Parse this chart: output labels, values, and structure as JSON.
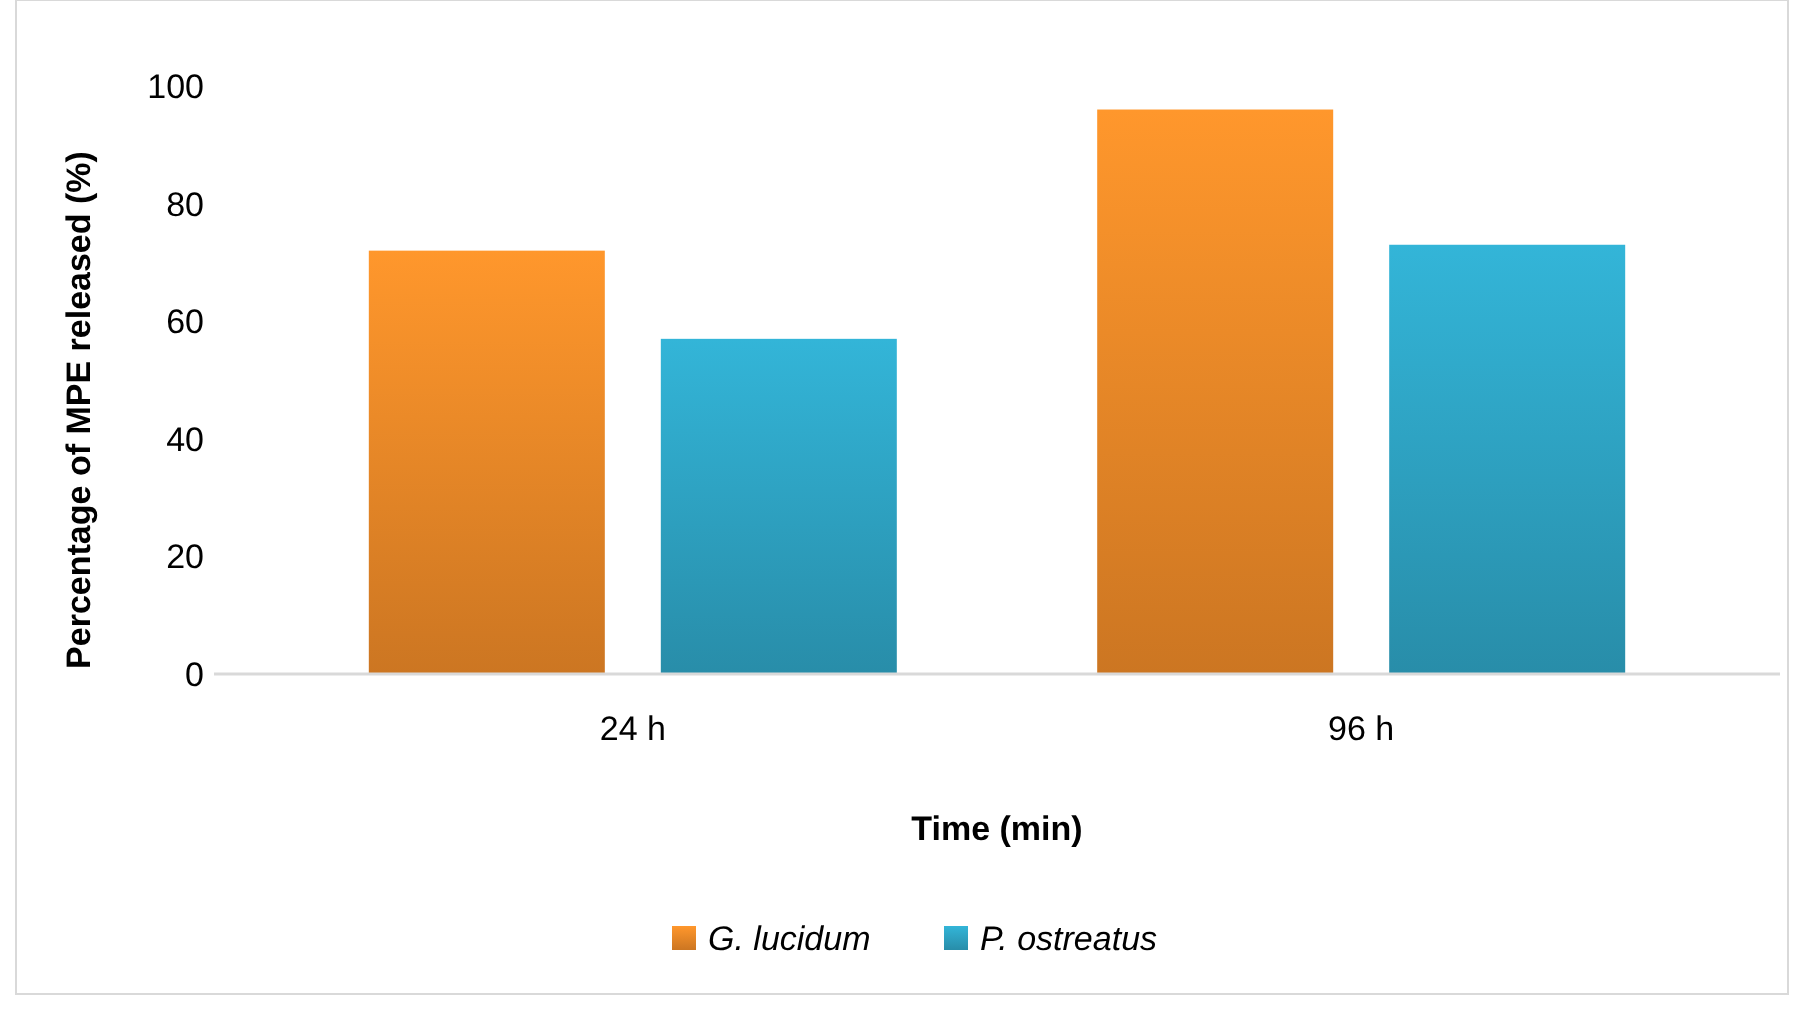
{
  "chart_data": {
    "type": "bar",
    "xlabel": "Time (min)",
    "ylabel": "Percentage of MPE released (%)",
    "categories": [
      "24 h",
      "96 h"
    ],
    "series": [
      {
        "name": "G. lucidum",
        "color": "#f08a28",
        "values": [
          72,
          96
        ]
      },
      {
        "name": "P. ostreatus",
        "color": "#2fa6c6",
        "values": [
          57,
          73
        ]
      }
    ],
    "ylim": [
      0,
      100
    ],
    "yticks": [
      0,
      20,
      40,
      60,
      80,
      100
    ],
    "grid": false,
    "legend": "bottom"
  }
}
